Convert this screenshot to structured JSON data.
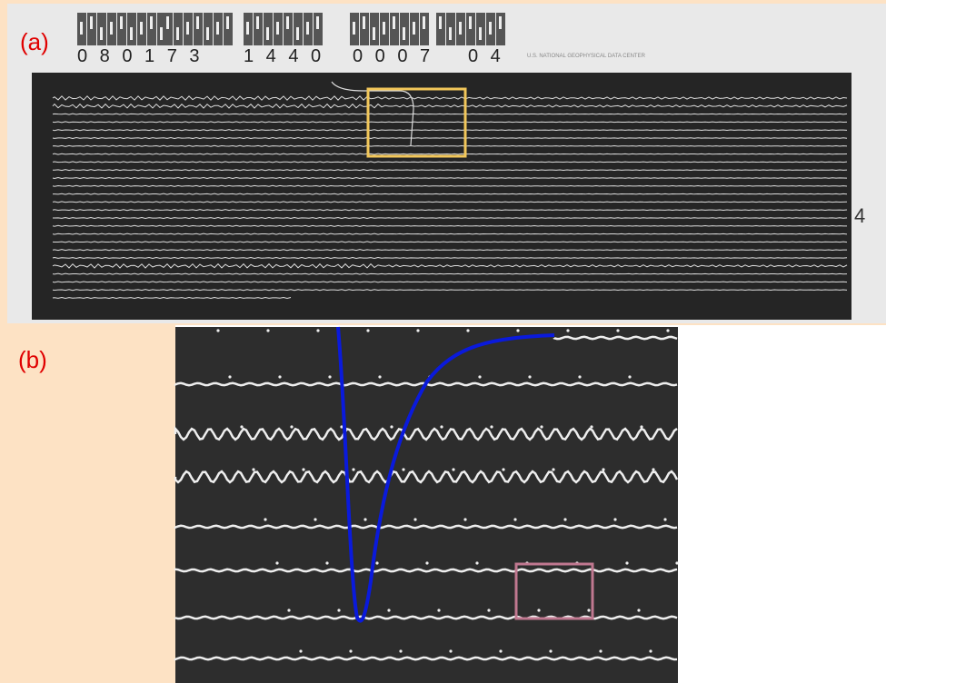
{
  "panel_a": {
    "label": "(a)",
    "codes": [
      "0 8 0 1 7 3",
      "1 4 4 0",
      "0 0 0 7",
      "0 4"
    ],
    "header": "U.S. NATIONAL GEOPHYSICAL DATA CENTER",
    "side_mark": "4"
  },
  "panel_b": {
    "label": "(b)"
  }
}
